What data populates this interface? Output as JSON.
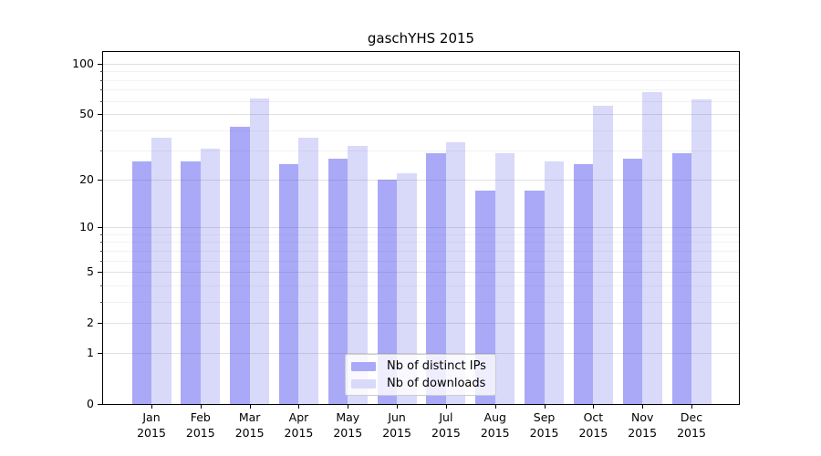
{
  "chart_data": {
    "type": "bar",
    "title": "gaschYHS 2015",
    "categories": [
      "Jan",
      "Feb",
      "Mar",
      "Apr",
      "May",
      "Jun",
      "Jul",
      "Aug",
      "Sep",
      "Oct",
      "Nov",
      "Dec"
    ],
    "category_year": "2015",
    "series": [
      {
        "name": "Nb of distinct IPs",
        "color": "#a9a9f8",
        "values": [
          26,
          26,
          42,
          25,
          27,
          20,
          29,
          17,
          17,
          25,
          27,
          29
        ]
      },
      {
        "name": "Nb of downloads",
        "color": "#d9d9fa",
        "values": [
          36,
          31,
          62,
          36,
          32,
          22,
          34,
          29,
          26,
          56,
          68,
          61
        ]
      }
    ],
    "yscale": "log10(1+v)",
    "y_major_ticks": [
      0,
      1,
      2,
      5,
      10,
      20,
      50,
      100
    ],
    "y_minor_ticks": [
      3,
      4,
      6,
      7,
      8,
      9,
      30,
      40,
      60,
      70,
      80,
      90
    ],
    "ylim": [
      0,
      117
    ],
    "xlabel": "",
    "ylabel": "",
    "grid": "on",
    "legend_position": "lower center"
  }
}
